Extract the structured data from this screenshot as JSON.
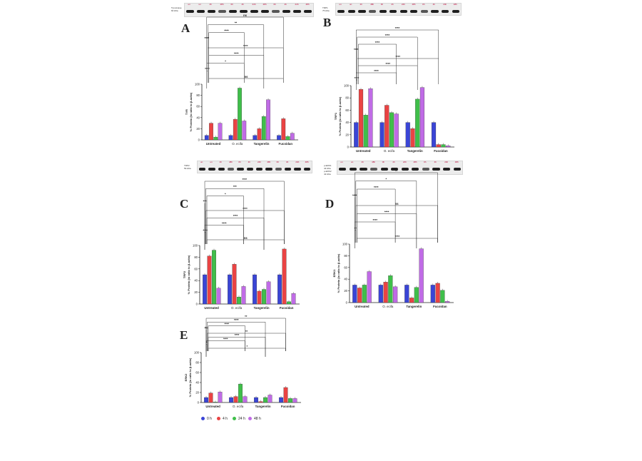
{
  "colors": {
    "s0": "#3a45d6",
    "s4": "#ea4343",
    "s24": "#3fbf4a",
    "s48": "#c06be6"
  },
  "chart_data": [
    {
      "id": "A",
      "type": "bar",
      "letter": "A",
      "ylabel": "% Protein (in ratio to β-actin)",
      "protein": "TYR",
      "ylim": [
        0,
        100
      ],
      "yticks": [
        0,
        20,
        40,
        60,
        80,
        100
      ],
      "categories": [
        "Untreated",
        "O. ecifa",
        "Tangerelin",
        "Fucoidan"
      ],
      "series": [
        {
          "name": "0 h",
          "values": [
            8,
            8,
            8,
            8
          ]
        },
        {
          "name": "4 h",
          "values": [
            30,
            37,
            20,
            38
          ]
        },
        {
          "name": "24 h",
          "values": [
            5,
            93,
            42,
            6
          ]
        },
        {
          "name": "48 h",
          "values": [
            30,
            34,
            72,
            12
          ]
        }
      ],
      "sig": [
        "ns",
        "**",
        "****",
        "****",
        "****",
        "****",
        "*",
        "****",
        "ns"
      ],
      "blot": {
        "labels": [
          "Tyrosinase",
          "60 kDa"
        ],
        "lanes": [
          "un",
          "un",
          "4h",
          "48h",
          "0h",
          "4h",
          "24h",
          "48h",
          "0h",
          "4h",
          "24h",
          "48h"
        ]
      }
    },
    {
      "id": "B",
      "type": "bar",
      "letter": "B",
      "ylabel": "% Protein (in ratio to β-actin)",
      "protein": "TRP1",
      "ylim": [
        0,
        100
      ],
      "yticks": [
        0,
        20,
        40,
        60,
        80,
        100
      ],
      "categories": [
        "Untreated",
        "O. ecifa",
        "Tangerelin",
        "Fucoidan"
      ],
      "series": [
        {
          "name": "0 h",
          "values": [
            40,
            40,
            40,
            40
          ]
        },
        {
          "name": "4 h",
          "values": [
            94,
            68,
            30,
            4
          ]
        },
        {
          "name": "24 h",
          "values": [
            52,
            56,
            78,
            4
          ]
        },
        {
          "name": "48 h",
          "values": [
            95,
            54,
            97,
            2
          ]
        }
      ],
      "sig": [
        "****",
        "****",
        "****",
        "****",
        "****",
        "****",
        "****",
        "****"
      ],
      "blot": {
        "labels": [
          "TRP1",
          "75 kDa"
        ],
        "lanes": [
          "un",
          "un",
          "4h",
          "48h",
          "0h",
          "4h",
          "24h",
          "48h",
          "0h",
          "4h",
          "24h",
          "48h"
        ]
      }
    },
    {
      "id": "C",
      "type": "bar",
      "letter": "C",
      "ylabel": "% Protein (in ratio to β-actin)",
      "protein": "TRP2",
      "ylim": [
        0,
        100
      ],
      "yticks": [
        0,
        20,
        40,
        60,
        80,
        100
      ],
      "categories": [
        "Untreated",
        "O. ecifa",
        "Tangerelin",
        "Fucoidan"
      ],
      "series": [
        {
          "name": "0 h",
          "values": [
            50,
            50,
            50,
            50
          ]
        },
        {
          "name": "4 h",
          "values": [
            82,
            68,
            22,
            94
          ]
        },
        {
          "name": "24 h",
          "values": [
            92,
            12,
            25,
            4
          ]
        },
        {
          "name": "48 h",
          "values": [
            27,
            30,
            38,
            18
          ]
        }
      ],
      "sig": [
        "****",
        "***",
        "*",
        "***",
        "****",
        "****",
        "****",
        "****",
        "ns"
      ],
      "blot": {
        "labels": [
          "TRP2",
          "59 kDa"
        ],
        "lanes": [
          "un",
          "un",
          "4h",
          "48h",
          "0h",
          "4h",
          "24h",
          "48h",
          "0h",
          "4h",
          "24h",
          "48h"
        ]
      }
    },
    {
      "id": "D",
      "type": "bar",
      "letter": "D",
      "ylabel": "% Protein (in ratio to β-actin)",
      "protein": "ERK1",
      "ylim": [
        0,
        100
      ],
      "yticks": [
        0,
        20,
        40,
        60,
        80,
        100
      ],
      "categories": [
        "Untreated",
        "O. ecifa",
        "Tangerelin",
        "Fucoidan"
      ],
      "series": [
        {
          "name": "0 h",
          "values": [
            30,
            30,
            30,
            30
          ]
        },
        {
          "name": "4 h",
          "values": [
            25,
            35,
            8,
            33
          ]
        },
        {
          "name": "24 h",
          "values": [
            30,
            46,
            26,
            21
          ]
        },
        {
          "name": "48 h",
          "values": [
            53,
            27,
            92,
            2
          ]
        }
      ],
      "sig": [
        "**",
        "*",
        "****",
        "****",
        "ns",
        "****",
        "****",
        "**",
        "****"
      ],
      "blot": {
        "labels": [
          "p-ERK1",
          "44 kDa",
          "p-ERK2",
          "42 kDa"
        ],
        "lanes": [
          "un",
          "un",
          "4h",
          "48h",
          "0h",
          "4h",
          "24h",
          "48h",
          "0h",
          "4h",
          "24h",
          "48h"
        ]
      }
    },
    {
      "id": "E",
      "type": "bar",
      "letter": "E",
      "ylabel": "% Protein (in ratio to β-actin)",
      "protein": "ERK2",
      "ylim": [
        0,
        100
      ],
      "yticks": [
        0,
        20,
        40,
        60,
        80,
        100
      ],
      "categories": [
        "Untreated",
        "O. ecifa",
        "Tangerelin",
        "Fucoidan"
      ],
      "series": [
        {
          "name": "0 h",
          "values": [
            10,
            10,
            10,
            10
          ]
        },
        {
          "name": "4 h",
          "values": [
            19,
            12,
            2,
            30
          ]
        },
        {
          "name": "24 h",
          "values": [
            0,
            37,
            10,
            8
          ]
        },
        {
          "name": "48 h",
          "values": [
            21,
            12,
            15,
            8
          ]
        }
      ],
      "sig": [
        "**",
        "****",
        "****",
        "ns",
        "**",
        "****",
        "****",
        "*",
        "*"
      ]
    }
  ],
  "legend": [
    "0 h",
    "4 h",
    "24 h",
    "48 h"
  ]
}
